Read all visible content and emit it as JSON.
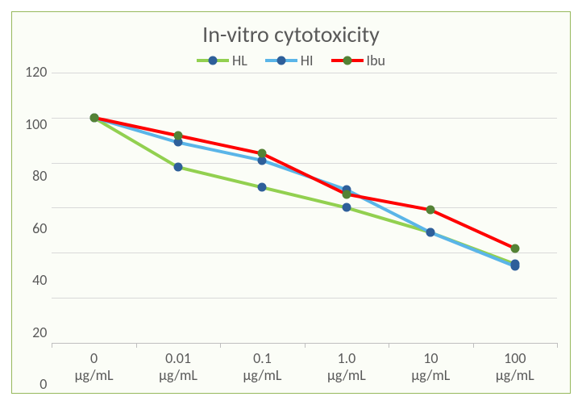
{
  "chart": {
    "type": "line",
    "title": "In-vitro cytotoxicity",
    "title_fontsize": 28,
    "title_color": "#595959",
    "frame_border_color": "#96b85c",
    "frame_background": "#fbfdf7",
    "grid_color": "#d9d9d9",
    "axis_line_color": "#bfbfbf",
    "label_color": "#595959",
    "label_fontsize": 18,
    "legend_fontsize": 18,
    "ylim": [
      0,
      120
    ],
    "ytick_step": 20,
    "yticks": [
      0,
      20,
      40,
      60,
      80,
      100,
      120
    ],
    "categories": [
      "0 µg/mL",
      "0.01 µg/mL",
      "0.1 µg/mL",
      "1.0 µg/mL",
      "10 µg/mL",
      "100 µg/mL"
    ],
    "series": [
      {
        "name": "HL",
        "line_color": "#92d050",
        "marker_color": "#2e5f9a",
        "line_width": 4,
        "marker_size": 11,
        "values": [
          100,
          78,
          69,
          60,
          49,
          35
        ]
      },
      {
        "name": "HI",
        "line_color": "#5ab5e8",
        "marker_color": "#2e5f9a",
        "line_width": 4,
        "marker_size": 11,
        "values": [
          100,
          89,
          81,
          68,
          49,
          34
        ]
      },
      {
        "name": "Ibu",
        "line_color": "#ff0000",
        "marker_color": "#548235",
        "line_width": 4,
        "marker_size": 11,
        "values": [
          100,
          92,
          84,
          66,
          59,
          42
        ]
      }
    ],
    "legend_position": "top-center"
  }
}
